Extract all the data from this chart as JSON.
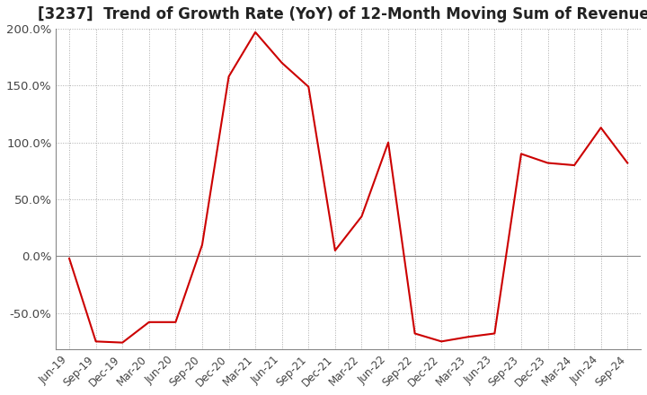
{
  "title": "[3237]  Trend of Growth Rate (YoY) of 12-Month Moving Sum of Revenues",
  "title_fontsize": 12,
  "line_color": "#cc0000",
  "background_color": "#ffffff",
  "grid_color": "#aaaaaa",
  "ylim": [
    -0.82,
    0.215
  ],
  "yticks": [
    -0.5,
    0.0,
    0.5,
    1.0,
    1.5,
    2.0
  ],
  "ytick_labels": [
    "-50.0%",
    "0.0%",
    "50.0%",
    "100.0%",
    "150.0%",
    "200.0%"
  ],
  "x_labels": [
    "Jun-19",
    "Sep-19",
    "Dec-19",
    "Mar-20",
    "Jun-20",
    "Sep-20",
    "Dec-20",
    "Mar-21",
    "Jun-21",
    "Sep-21",
    "Dec-21",
    "Mar-22",
    "Jun-22",
    "Sep-22",
    "Dec-22",
    "Mar-23",
    "Jun-23",
    "Sep-23",
    "Dec-23",
    "Mar-24",
    "Jun-24",
    "Sep-24"
  ],
  "y_values": [
    -0.02,
    -0.75,
    -0.76,
    -0.58,
    -0.58,
    0.1,
    1.58,
    1.97,
    1.7,
    1.49,
    0.05,
    0.35,
    1.0,
    -0.68,
    -0.75,
    -0.71,
    -0.68,
    0.9,
    0.82,
    0.8,
    1.13,
    0.82
  ]
}
